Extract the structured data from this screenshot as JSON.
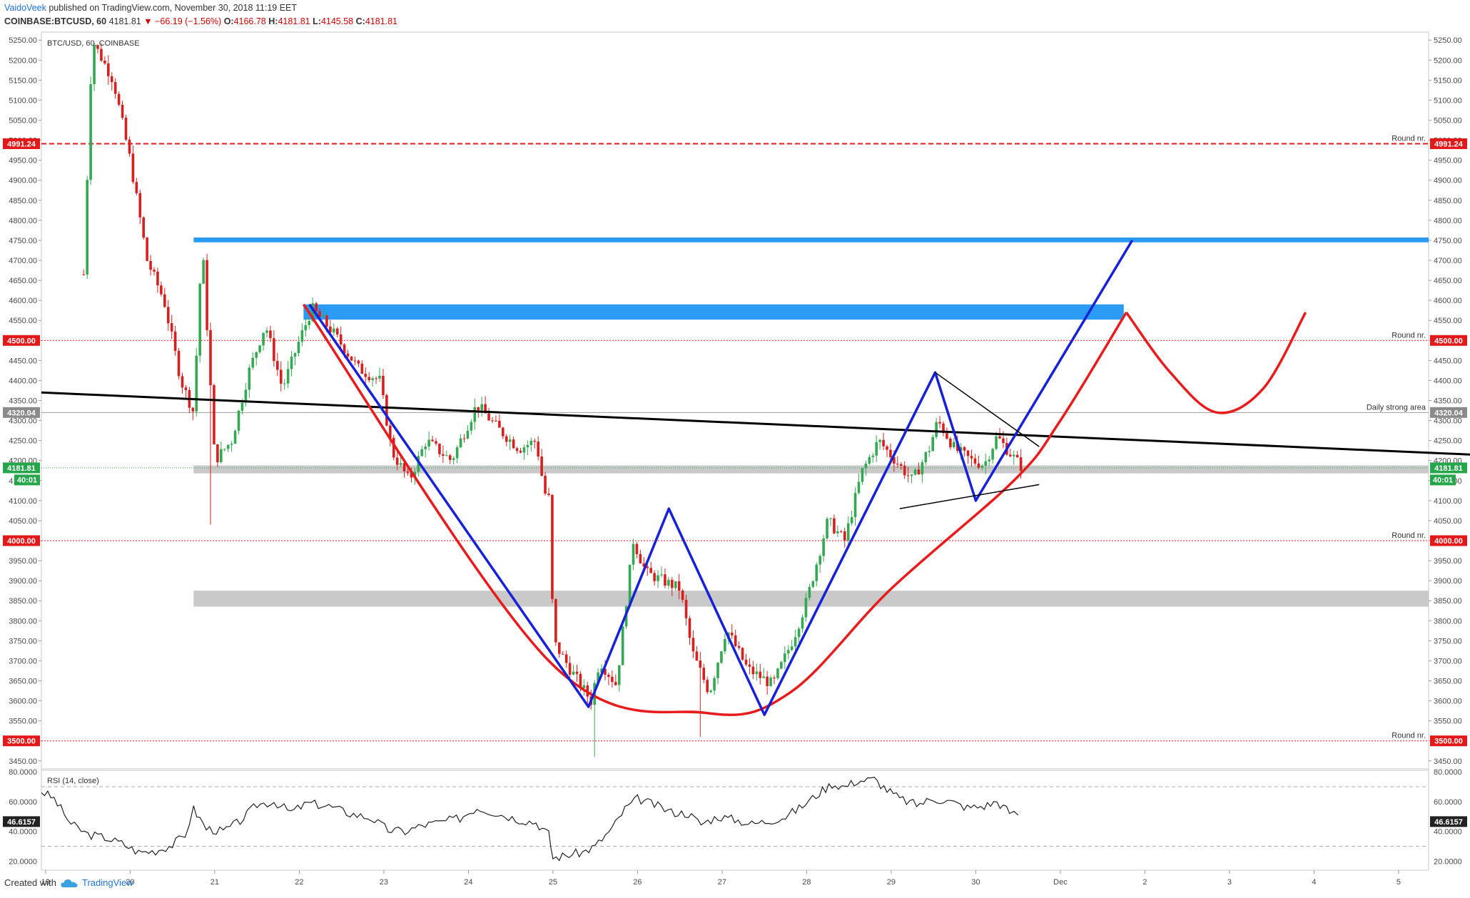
{
  "header": {
    "author": "VaidoVeek",
    "published_text": "published on TradingView.com, November 30, 2018 11:19 EET",
    "symbol": "COINBASE:BTCUSD, 60",
    "last_price": "4181.81",
    "change": "▼ −66.19 (−1.56%)",
    "open_label": "O:",
    "open": "4166.78",
    "high_label": "H:",
    "high": "4181.81",
    "low_label": "L:",
    "low": "4145.58",
    "close_label": "C:",
    "close": "4181.81"
  },
  "footer": {
    "created_with": "Created with",
    "brand": "TradingView",
    "logo_icon": "tradingview-cloud-icon"
  },
  "chart_data": {
    "type": "candlestick",
    "legend": "BTC/USD, 60, COINBASE",
    "x_ticks": [
      "19",
      "20",
      "21",
      "22",
      "23",
      "24",
      "25",
      "26",
      "27",
      "28",
      "29",
      "30",
      "Dec",
      "2",
      "3",
      "4",
      "5"
    ],
    "y_ticks": [
      "5250.00",
      "5200.00",
      "5150.00",
      "5100.00",
      "5050.00",
      "5000.00",
      "4950.00",
      "4900.00",
      "4850.00",
      "4800.00",
      "4750.00",
      "4700.00",
      "4650.00",
      "4600.00",
      "4550.00",
      "4500.00",
      "4450.00",
      "4400.00",
      "4350.00",
      "4300.00",
      "4250.00",
      "4200.00",
      "4150.00",
      "4100.00",
      "4050.00",
      "4000.00",
      "3950.00",
      "3900.00",
      "3850.00",
      "3800.00",
      "3750.00",
      "3700.00",
      "3650.00",
      "3600.00",
      "3550.00",
      "3500.00",
      "3450.00"
    ],
    "ylim": [
      3430,
      5270
    ],
    "price_path": [
      [
        19.35,
        4080
      ],
      [
        19.55,
        5250
      ],
      [
        19.8,
        5150
      ],
      [
        20.0,
        4950
      ],
      [
        20.2,
        4700
      ],
      [
        20.4,
        4600
      ],
      [
        20.6,
        4400
      ],
      [
        20.75,
        4320
      ],
      [
        20.85,
        4750
      ],
      [
        21.0,
        4200
      ],
      [
        21.2,
        4250
      ],
      [
        21.4,
        4420
      ],
      [
        21.6,
        4540
      ],
      [
        21.8,
        4380
      ],
      [
        22.0,
        4500
      ],
      [
        22.15,
        4580
      ],
      [
        22.4,
        4520
      ],
      [
        22.7,
        4430
      ],
      [
        22.95,
        4400
      ],
      [
        23.1,
        4220
      ],
      [
        23.3,
        4150
      ],
      [
        23.5,
        4250
      ],
      [
        23.8,
        4200
      ],
      [
        24.1,
        4340
      ],
      [
        24.35,
        4280
      ],
      [
        24.6,
        4230
      ],
      [
        24.8,
        4250
      ],
      [
        24.9,
        4120
      ],
      [
        24.97,
        4100
      ],
      [
        25.0,
        3750
      ],
      [
        25.2,
        3680
      ],
      [
        25.45,
        3600
      ],
      [
        25.55,
        3700
      ],
      [
        25.75,
        3640
      ],
      [
        25.95,
        4000
      ],
      [
        26.1,
        3920
      ],
      [
        26.3,
        3900
      ],
      [
        26.5,
        3880
      ],
      [
        26.65,
        3720
      ],
      [
        26.85,
        3620
      ],
      [
        27.05,
        3780
      ],
      [
        27.3,
        3680
      ],
      [
        27.6,
        3640
      ],
      [
        27.85,
        3760
      ],
      [
        28.0,
        3850
      ],
      [
        28.25,
        4050
      ],
      [
        28.45,
        4000
      ],
      [
        28.65,
        4170
      ],
      [
        28.85,
        4250
      ],
      [
        29.05,
        4200
      ],
      [
        29.25,
        4150
      ],
      [
        29.45,
        4230
      ],
      [
        29.55,
        4300
      ],
      [
        29.75,
        4230
      ],
      [
        29.95,
        4200
      ],
      [
        30.1,
        4190
      ],
      [
        30.25,
        4260
      ],
      [
        30.4,
        4220
      ],
      [
        30.55,
        4181.81
      ]
    ],
    "price_low_wicks": [
      [
        20.95,
        4040
      ],
      [
        25.5,
        3460
      ],
      [
        26.75,
        3510
      ]
    ],
    "rsi": {
      "label": "RSI (14, close)",
      "value": "46.6157",
      "ticks": [
        "80.0000",
        "60.0000",
        "40.0000",
        "20.0000"
      ],
      "levels": [
        70,
        30
      ],
      "ylim": [
        14,
        82
      ],
      "values": [
        [
          18.95,
          67
        ],
        [
          19.1,
          62
        ],
        [
          19.3,
          45
        ],
        [
          19.5,
          38
        ],
        [
          19.7,
          36
        ],
        [
          19.9,
          32
        ],
        [
          20.1,
          26
        ],
        [
          20.3,
          27
        ],
        [
          20.5,
          31
        ],
        [
          20.65,
          38
        ],
        [
          20.75,
          55
        ],
        [
          20.9,
          42
        ],
        [
          21.1,
          40
        ],
        [
          21.3,
          47
        ],
        [
          21.5,
          58
        ],
        [
          21.7,
          60
        ],
        [
          21.9,
          53
        ],
        [
          22.1,
          59
        ],
        [
          22.35,
          57
        ],
        [
          22.6,
          52
        ],
        [
          22.85,
          49
        ],
        [
          23.05,
          41
        ],
        [
          23.25,
          40
        ],
        [
          23.45,
          44
        ],
        [
          23.65,
          46
        ],
        [
          23.9,
          49
        ],
        [
          24.1,
          56
        ],
        [
          24.35,
          52
        ],
        [
          24.6,
          48
        ],
        [
          24.8,
          46
        ],
        [
          24.95,
          38
        ],
        [
          25.0,
          22
        ],
        [
          25.15,
          24
        ],
        [
          25.35,
          26
        ],
        [
          25.5,
          30
        ],
        [
          25.7,
          42
        ],
        [
          25.85,
          55
        ],
        [
          26.0,
          62
        ],
        [
          26.2,
          58
        ],
        [
          26.4,
          53
        ],
        [
          26.6,
          52
        ],
        [
          26.75,
          45
        ],
        [
          26.95,
          50
        ],
        [
          27.15,
          48
        ],
        [
          27.35,
          45
        ],
        [
          27.55,
          47
        ],
        [
          27.75,
          50
        ],
        [
          27.95,
          57
        ],
        [
          28.15,
          66
        ],
        [
          28.3,
          72
        ],
        [
          28.45,
          70
        ],
        [
          28.6,
          74
        ],
        [
          28.8,
          75
        ],
        [
          28.95,
          68
        ],
        [
          29.1,
          62
        ],
        [
          29.3,
          58
        ],
        [
          29.5,
          62
        ],
        [
          29.7,
          60
        ],
        [
          29.9,
          56
        ],
        [
          30.1,
          57
        ],
        [
          30.25,
          60
        ],
        [
          30.4,
          53
        ],
        [
          30.5,
          51
        ]
      ]
    },
    "horizontal_levels": [
      {
        "price": 4991.24,
        "tag": "4991.24",
        "label": "Round nr.",
        "style": "dashed",
        "color": "#e31919"
      },
      {
        "price": 4500.0,
        "tag": "4500.00",
        "label": "Round nr.",
        "style": "dotted",
        "color": "#e31919"
      },
      {
        "price": 4320.04,
        "tag": "4320.04",
        "label": "Daily strong area",
        "style": "solid",
        "color": "#9e9e9e"
      },
      {
        "price": 4000.0,
        "tag": "4000.00",
        "label": "Round nr.",
        "style": "dotted",
        "color": "#e31919"
      },
      {
        "price": 3500.0,
        "tag": "3500.00",
        "label": "Round nr.",
        "style": "dotted",
        "color": "#e31919"
      }
    ],
    "current_price": {
      "price": 4181.81,
      "tag": "4181.81",
      "countdown": "40:01",
      "color": "#26a64b"
    },
    "zones": [
      {
        "name": "resistance-line-4750",
        "x0": 20.75,
        "x1": 36.0,
        "y0": 4745,
        "y1": 4757,
        "color": "#2196f3"
      },
      {
        "name": "resistance-zone-4570",
        "x0": 22.05,
        "x1": 31.75,
        "y0": 4552,
        "y1": 4590,
        "color": "#2196f3"
      },
      {
        "name": "support-zone-4180",
        "x0": 20.75,
        "x1": 36.0,
        "y0": 4168,
        "y1": 4188,
        "color": "#c0c0c0"
      },
      {
        "name": "support-zone-3850",
        "x0": 20.75,
        "x1": 36.0,
        "y0": 3835,
        "y1": 3875,
        "color": "#c0c0c0"
      }
    ],
    "trendline": {
      "points": [
        [
          18.95,
          4370
        ],
        [
          35.85,
          4215
        ]
      ],
      "color": "#000000"
    },
    "blue_zigzag": [
      [
        22.12,
        4590
      ],
      [
        25.42,
        3585
      ],
      [
        26.37,
        4080
      ],
      [
        27.5,
        3565
      ],
      [
        29.52,
        4420
      ],
      [
        30.0,
        4100
      ],
      [
        31.85,
        4750
      ]
    ],
    "red_cup": [
      [
        22.05,
        4590
      ],
      [
        24.95,
        3700
      ],
      [
        26.8,
        3570
      ],
      [
        27.8,
        3620
      ],
      [
        29.0,
        3880
      ],
      [
        30.45,
        4150
      ],
      [
        31.0,
        4300
      ],
      [
        31.78,
        4570
      ]
    ],
    "red_projection": [
      [
        31.78,
        4570
      ],
      [
        32.3,
        4420
      ],
      [
        32.85,
        4320
      ],
      [
        33.4,
        4380
      ],
      [
        33.9,
        4570
      ]
    ],
    "triangle_upper": [
      [
        29.52,
        4420
      ],
      [
        30.75,
        4235
      ]
    ],
    "triangle_lower": [
      [
        29.1,
        4080
      ],
      [
        30.75,
        4140
      ]
    ]
  }
}
